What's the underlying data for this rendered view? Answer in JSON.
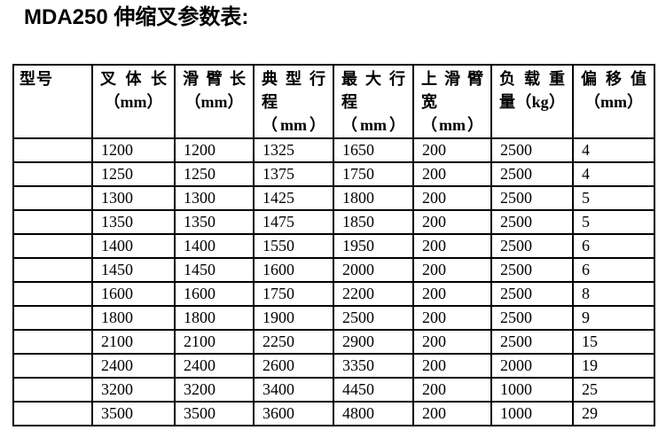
{
  "page": {
    "title": "MDA250 伸缩叉参数表:"
  },
  "table": {
    "headers": [
      {
        "l1": "型号",
        "l2": ""
      },
      {
        "l1": "叉体长",
        "l2": "（mm）"
      },
      {
        "l1": "滑臂长",
        "l2": "（mm）"
      },
      {
        "l1": "典型行",
        "l2": "程（mm）"
      },
      {
        "l1": "最大行",
        "l2": "程（mm）"
      },
      {
        "l1": "上滑臂",
        "l2": "宽（mm）"
      },
      {
        "l1": "负载重",
        "l2": "量（kg）"
      },
      {
        "l1": "偏移值",
        "l2": "（mm）"
      }
    ],
    "rows": [
      [
        "",
        "1200",
        "1200",
        "1325",
        "1650",
        "200",
        "2500",
        "4"
      ],
      [
        "",
        "1250",
        "1250",
        "1375",
        "1750",
        "200",
        "2500",
        "4"
      ],
      [
        "",
        "1300",
        "1300",
        "1425",
        "1800",
        "200",
        "2500",
        "5"
      ],
      [
        "",
        "1350",
        "1350",
        "1475",
        "1850",
        "200",
        "2500",
        "5"
      ],
      [
        "",
        "1400",
        "1400",
        "1550",
        "1950",
        "200",
        "2500",
        "6"
      ],
      [
        "",
        "1450",
        "1450",
        "1600",
        "2000",
        "200",
        "2500",
        "6"
      ],
      [
        "",
        "1600",
        "1600",
        "1750",
        "2200",
        "200",
        "2500",
        "8"
      ],
      [
        "",
        "1800",
        "1800",
        "1900",
        "2500",
        "200",
        "2500",
        "9"
      ],
      [
        "",
        "2100",
        "2100",
        "2250",
        "2900",
        "200",
        "2500",
        "15"
      ],
      [
        "",
        "2400",
        "2400",
        "2600",
        "3350",
        "200",
        "2000",
        "19"
      ],
      [
        "",
        "3200",
        "3200",
        "3400",
        "4450",
        "200",
        "1000",
        "25"
      ],
      [
        "",
        "3500",
        "3500",
        "3600",
        "4800",
        "200",
        "1000",
        "29"
      ]
    ],
    "colors": {
      "border": "#000000",
      "text": "#000000",
      "background": "#ffffff"
    }
  }
}
